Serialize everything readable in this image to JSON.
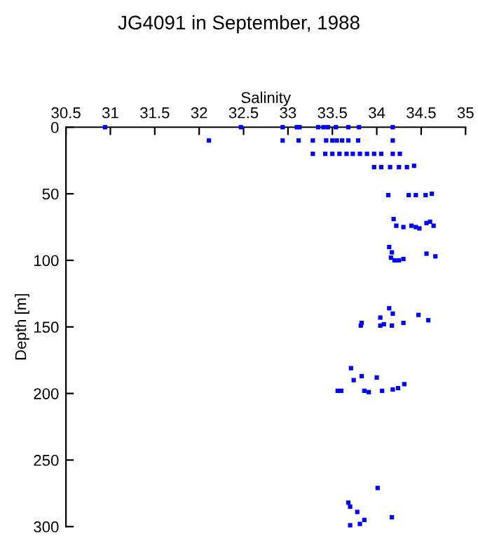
{
  "chart_data": {
    "type": "scatter",
    "title": "JG4091 in September, 1988",
    "xlabel": "Salinity",
    "ylabel": "Depth [m]",
    "xlim": [
      30.5,
      35
    ],
    "xticks": [
      30.5,
      31,
      31.5,
      32,
      32.5,
      33,
      33.5,
      34,
      34.5,
      35
    ],
    "ylim": [
      300,
      0
    ],
    "yticks": [
      0,
      50,
      100,
      150,
      200,
      250,
      300
    ],
    "grid": false,
    "marker": "square",
    "series": [
      {
        "color": "#0000ff",
        "x": [
          30.94,
          32.47,
          32.94,
          33.1,
          33.13,
          33.34,
          33.4,
          33.45,
          33.54,
          33.68,
          33.8,
          34.18,
          32.11,
          32.94,
          33.12,
          33.28,
          33.43,
          33.5,
          33.55,
          33.61,
          33.68,
          33.79,
          34.18,
          33.28,
          33.42,
          33.5,
          33.58,
          33.66,
          33.73,
          33.81,
          33.89,
          33.97,
          34.05,
          34.18,
          34.26,
          33.97,
          34.05,
          34.15,
          34.25,
          34.34,
          34.42,
          34.13,
          34.36,
          34.44,
          34.55,
          34.62,
          34.19,
          34.22,
          34.3,
          34.39,
          34.44,
          34.48,
          34.56,
          34.6,
          34.64,
          34.14,
          34.17,
          34.16,
          34.2,
          34.25,
          34.3,
          34.56,
          34.66,
          34.14,
          34.18,
          34.04,
          34.47,
          34.58,
          33.83,
          33.82,
          34.04,
          34.08,
          34.17,
          34.3,
          33.71,
          33.83,
          34.0,
          33.74,
          34.31,
          33.56,
          33.6,
          33.86,
          33.91,
          34.06,
          34.18,
          34.24,
          34.01,
          33.68,
          33.7,
          33.78,
          34.17,
          33.86,
          33.81,
          33.7
        ],
        "values": [
          0,
          0,
          0,
          0,
          0,
          0,
          0,
          0,
          0,
          0,
          0,
          0,
          10,
          10,
          10,
          10,
          10,
          10,
          10,
          10,
          10,
          10,
          10,
          20,
          20,
          20,
          20,
          20,
          20,
          20,
          20,
          20,
          20,
          20,
          20,
          30,
          30,
          30,
          30,
          30,
          29,
          51,
          51,
          51,
          51,
          50,
          69,
          74,
          75,
          74,
          75,
          76,
          72,
          71,
          74,
          90,
          94,
          98,
          100,
          100,
          99,
          95,
          97,
          136,
          140,
          143,
          141,
          145,
          147,
          149,
          149,
          148,
          149,
          147,
          181,
          187,
          188,
          190,
          193,
          198,
          198,
          198,
          199,
          198,
          197,
          196,
          271,
          282,
          285,
          289,
          293,
          295,
          298,
          299
        ]
      }
    ]
  }
}
